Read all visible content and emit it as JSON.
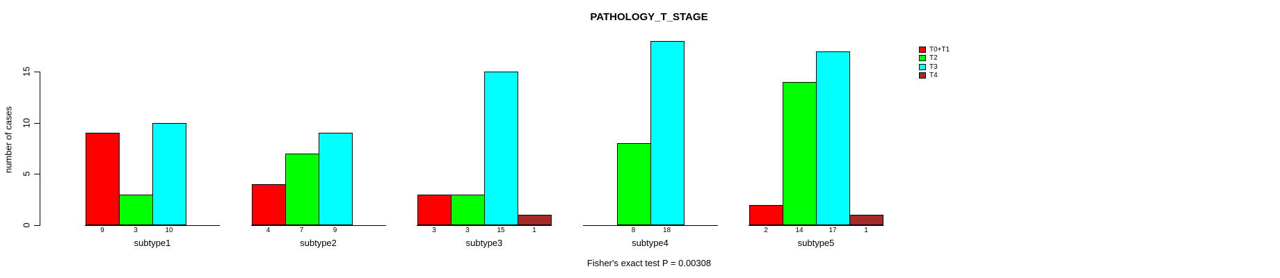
{
  "background_color": "#ffffff",
  "chart_data": {
    "type": "bar",
    "title": "PATHOLOGY_T_STAGE",
    "xlabel": "",
    "ylabel": "number of cases",
    "categories": [
      "subtype1",
      "subtype2",
      "subtype3",
      "subtype4",
      "subtype5"
    ],
    "series": [
      {
        "name": "T0+T1",
        "color": "#FF0000",
        "values": [
          9,
          4,
          3,
          0,
          2
        ]
      },
      {
        "name": "T2",
        "color": "#00FF00",
        "values": [
          3,
          7,
          3,
          8,
          14
        ]
      },
      {
        "name": "T3",
        "color": "#00FFFF",
        "values": [
          10,
          9,
          15,
          18,
          17
        ]
      },
      {
        "name": "T4",
        "color": "#A52A2A",
        "values": [
          0,
          0,
          1,
          0,
          1
        ]
      }
    ],
    "yticks": [
      0,
      5,
      10,
      15
    ],
    "ylim": [
      0,
      18
    ],
    "bar_value_labels": true,
    "grid": false,
    "legend_position": "right",
    "annotation": "Fisher's exact test P = 0.00308"
  }
}
